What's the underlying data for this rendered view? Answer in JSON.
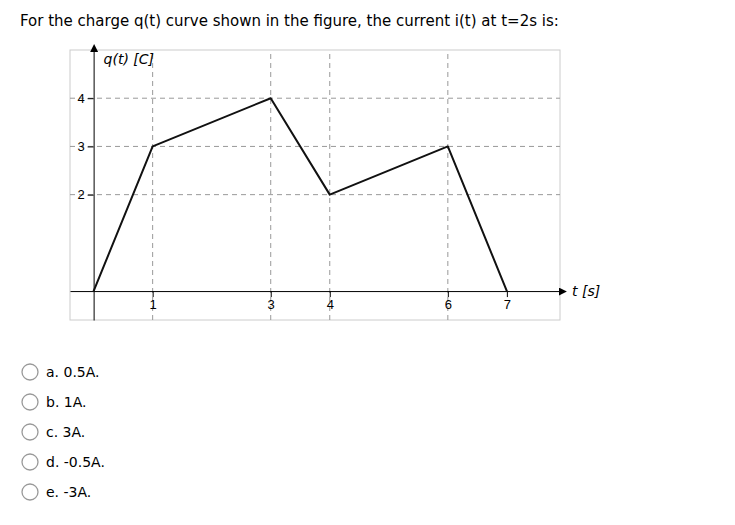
{
  "chart_data": {
    "type": "line",
    "title": "For the charge q(t) curve shown in the figure, the current i(t) at t=2s is:",
    "xlabel": "t [s]",
    "ylabel": "q(t) [C]",
    "x": [
      0,
      1,
      3,
      4,
      6,
      7
    ],
    "series": [
      {
        "color": "#111111",
        "values": [
          0,
          3,
          4,
          2,
          3,
          0
        ]
      }
    ],
    "xlim": [
      -0.4,
      7.9
    ],
    "ylim": [
      -0.6,
      5.0
    ],
    "xticks": [
      1,
      3,
      4,
      6,
      7
    ],
    "yticks": [
      2,
      3,
      4
    ],
    "hlines": [
      2,
      3,
      4
    ],
    "vlines": [
      1,
      3,
      4,
      6
    ],
    "annotations": [
      "a. 0.5A.",
      "b. 1A.",
      "c. 3A.",
      "d. -0.5A.",
      "e. -3A."
    ]
  }
}
